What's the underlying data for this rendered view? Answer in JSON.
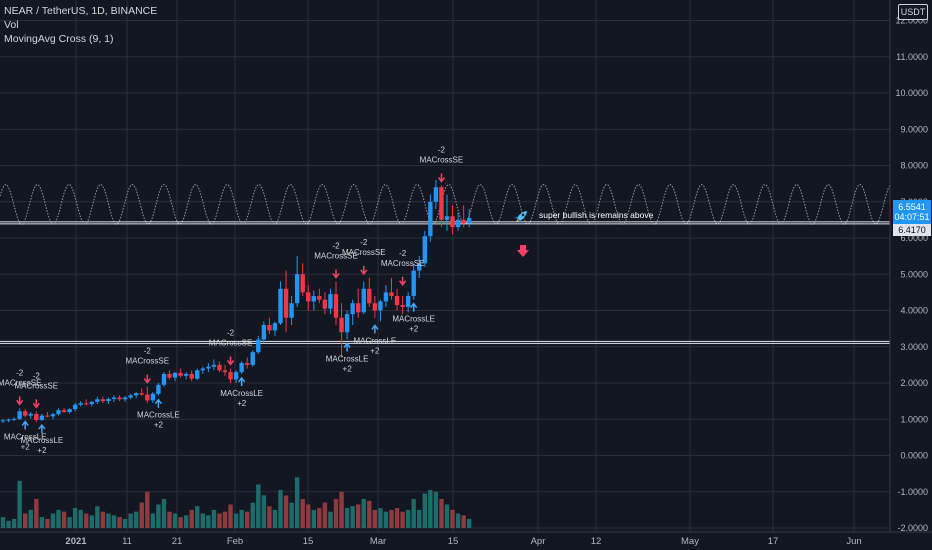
{
  "legend": {
    "symbol": "NEAR / TetherUS, 1D, BINANCE",
    "vol": "Vol",
    "indicator": "MovingAvg Cross (9, 1)"
  },
  "currency_button": "USDT",
  "price_tags": {
    "last_price": "6.5541",
    "countdown": "04:07:51",
    "line_price": "6.4170"
  },
  "annotation": {
    "text": "super bullish is remains above",
    "rocket_icon": "rocket-icon",
    "arrow_icon": "down-arrow-icon"
  },
  "colors": {
    "background": "#131722",
    "up": "#2196f3",
    "down": "#f23645",
    "vol_up": "#1e6b6b",
    "vol_down": "#8e3a3f",
    "grid": "#2a2e39",
    "line": "#e0e3eb",
    "signal_up": "#42a5f5",
    "signal_down": "#f7416a"
  },
  "chart_data": {
    "type": "candlestick",
    "y_axis": {
      "ticks": [
        "12.0000",
        "11.0000",
        "10.0000",
        "9.0000",
        "8.0000",
        "7.0000",
        "6.0000",
        "5.0000",
        "4.0000",
        "3.0000",
        "2.0000",
        "1.0000",
        "0.0000",
        "-1.0000",
        "-2.0000"
      ],
      "range": [
        -2,
        12.4
      ]
    },
    "x_axis": {
      "ticks": [
        "2021",
        "11",
        "21",
        "Feb",
        "15",
        "Mar",
        "15",
        "Apr",
        "12",
        "May",
        "17",
        "Jun"
      ]
    },
    "horizontal_lines": [
      6.417,
      3.12
    ],
    "candles": [
      [
        0.95,
        1.0,
        0.9,
        0.97
      ],
      [
        0.97,
        1.02,
        0.92,
        0.99
      ],
      [
        0.99,
        1.05,
        0.95,
        1.01
      ],
      [
        1.01,
        1.3,
        0.98,
        1.22
      ],
      [
        1.22,
        1.28,
        1.05,
        1.1
      ],
      [
        1.1,
        1.2,
        1.02,
        1.15
      ],
      [
        1.15,
        1.22,
        0.92,
        0.98
      ],
      [
        0.98,
        1.15,
        0.95,
        1.1
      ],
      [
        1.1,
        1.2,
        1.05,
        1.08
      ],
      [
        1.08,
        1.18,
        1.0,
        1.14
      ],
      [
        1.14,
        1.3,
        1.1,
        1.25
      ],
      [
        1.25,
        1.32,
        1.18,
        1.2
      ],
      [
        1.2,
        1.3,
        1.15,
        1.28
      ],
      [
        1.28,
        1.45,
        1.22,
        1.4
      ],
      [
        1.4,
        1.5,
        1.35,
        1.44
      ],
      [
        1.44,
        1.55,
        1.38,
        1.42
      ],
      [
        1.42,
        1.5,
        1.36,
        1.48
      ],
      [
        1.48,
        1.62,
        1.42,
        1.55
      ],
      [
        1.55,
        1.62,
        1.45,
        1.5
      ],
      [
        1.5,
        1.6,
        1.42,
        1.56
      ],
      [
        1.56,
        1.66,
        1.48,
        1.6
      ],
      [
        1.6,
        1.66,
        1.5,
        1.55
      ],
      [
        1.55,
        1.64,
        1.48,
        1.6
      ],
      [
        1.6,
        1.7,
        1.55,
        1.66
      ],
      [
        1.66,
        1.75,
        1.58,
        1.72
      ],
      [
        1.72,
        1.85,
        1.65,
        1.68
      ],
      [
        1.68,
        1.9,
        1.45,
        1.52
      ],
      [
        1.52,
        1.75,
        1.45,
        1.7
      ],
      [
        1.7,
        2.0,
        1.65,
        1.95
      ],
      [
        1.95,
        2.3,
        1.9,
        2.25
      ],
      [
        2.25,
        2.35,
        2.1,
        2.15
      ],
      [
        2.15,
        2.3,
        2.05,
        2.28
      ],
      [
        2.28,
        2.4,
        2.15,
        2.2
      ],
      [
        2.2,
        2.3,
        2.1,
        2.25
      ],
      [
        2.25,
        2.35,
        2.05,
        2.12
      ],
      [
        2.12,
        2.4,
        2.08,
        2.35
      ],
      [
        2.35,
        2.45,
        2.25,
        2.4
      ],
      [
        2.4,
        2.55,
        2.3,
        2.45
      ],
      [
        2.45,
        2.65,
        2.35,
        2.5
      ],
      [
        2.5,
        2.6,
        2.3,
        2.35
      ],
      [
        2.35,
        2.5,
        2.2,
        2.3
      ],
      [
        2.3,
        2.4,
        2.0,
        2.1
      ],
      [
        2.1,
        2.35,
        2.0,
        2.3
      ],
      [
        2.3,
        2.6,
        2.25,
        2.55
      ],
      [
        2.55,
        2.7,
        2.4,
        2.5
      ],
      [
        2.5,
        2.9,
        2.45,
        2.85
      ],
      [
        2.85,
        3.3,
        2.8,
        3.2
      ],
      [
        3.2,
        3.7,
        3.1,
        3.6
      ],
      [
        3.6,
        3.8,
        3.35,
        3.45
      ],
      [
        3.45,
        3.7,
        3.3,
        3.65
      ],
      [
        3.65,
        4.8,
        3.6,
        4.6
      ],
      [
        4.6,
        5.1,
        3.4,
        3.8
      ],
      [
        3.8,
        4.4,
        3.6,
        4.2
      ],
      [
        4.2,
        5.5,
        4.1,
        5.0
      ],
      [
        5.0,
        5.3,
        4.4,
        4.5
      ],
      [
        4.5,
        4.7,
        4.0,
        4.25
      ],
      [
        4.25,
        4.55,
        4.0,
        4.4
      ],
      [
        4.4,
        4.6,
        4.2,
        4.3
      ],
      [
        4.3,
        4.5,
        3.9,
        4.05
      ],
      [
        4.05,
        4.6,
        3.9,
        4.45
      ],
      [
        4.45,
        4.8,
        3.6,
        3.8
      ],
      [
        3.8,
        4.2,
        2.7,
        3.4
      ],
      [
        3.4,
        4.0,
        3.2,
        3.9
      ],
      [
        3.9,
        4.3,
        3.6,
        4.2
      ],
      [
        4.2,
        4.6,
        3.8,
        3.95
      ],
      [
        3.95,
        4.8,
        3.9,
        4.6
      ],
      [
        4.6,
        4.9,
        4.1,
        4.2
      ],
      [
        4.2,
        4.4,
        3.8,
        4.0
      ],
      [
        4.0,
        4.3,
        3.7,
        4.25
      ],
      [
        4.25,
        4.7,
        4.1,
        4.5
      ],
      [
        4.5,
        4.9,
        4.3,
        4.4
      ],
      [
        4.4,
        4.6,
        4.0,
        4.15
      ],
      [
        4.15,
        4.4,
        3.9,
        4.1
      ],
      [
        4.1,
        4.5,
        3.95,
        4.4
      ],
      [
        4.4,
        5.3,
        4.3,
        5.1
      ],
      [
        5.1,
        5.5,
        4.9,
        5.3
      ],
      [
        5.3,
        6.2,
        5.2,
        6.05
      ],
      [
        6.05,
        7.2,
        5.9,
        7.0
      ],
      [
        7.0,
        7.6,
        6.8,
        7.4
      ],
      [
        7.4,
        7.45,
        6.3,
        6.5
      ],
      [
        6.5,
        7.2,
        6.2,
        6.6
      ],
      [
        6.6,
        6.9,
        6.1,
        6.3
      ],
      [
        6.3,
        6.7,
        6.2,
        6.5
      ],
      [
        6.5,
        6.9,
        6.3,
        6.4
      ],
      [
        6.4,
        6.8,
        6.3,
        6.55
      ]
    ],
    "volumes": [
      -1.7,
      -1.8,
      -1.75,
      -0.7,
      -1.6,
      -1.5,
      -1.2,
      -1.7,
      -1.75,
      -1.6,
      -1.5,
      -1.55,
      -1.7,
      -1.45,
      -1.5,
      -1.6,
      -1.65,
      -1.4,
      -1.55,
      -1.6,
      -1.65,
      -1.7,
      -1.75,
      -1.6,
      -1.55,
      -1.3,
      -1.0,
      -1.6,
      -1.35,
      -1.2,
      -1.55,
      -1.6,
      -1.7,
      -1.65,
      -1.5,
      -1.4,
      -1.6,
      -1.65,
      -1.5,
      -1.6,
      -1.55,
      -1.35,
      -1.6,
      -1.5,
      -1.55,
      -1.3,
      -0.8,
      -1.1,
      -1.4,
      -1.5,
      -0.95,
      -1.1,
      -1.3,
      -0.6,
      -1.2,
      -1.35,
      -1.5,
      -1.45,
      -1.3,
      -1.55,
      -1.2,
      -1.0,
      -1.45,
      -1.4,
      -1.35,
      -1.2,
      -1.25,
      -1.5,
      -1.45,
      -1.55,
      -1.5,
      -1.45,
      -1.55,
      -1.5,
      -1.2,
      -1.5,
      -1.05,
      -0.95,
      -1.0,
      -1.2,
      -1.35,
      -1.5,
      -1.6,
      -1.65,
      -1.75
    ],
    "signals": [
      {
        "type": "SE",
        "label": "MACrossSE",
        "pos": "-2",
        "i": 3,
        "price": 1.3
      },
      {
        "type": "SE",
        "label": "MACrossSE",
        "pos": "-2",
        "i": 6,
        "price": 1.22
      },
      {
        "type": "LE",
        "label": "MACrossLE",
        "pos": "+2",
        "i": 4,
        "price": 1.05
      },
      {
        "type": "LE",
        "label": "MACrossLE",
        "pos": "+2",
        "i": 7,
        "price": 0.95
      },
      {
        "type": "SE",
        "label": "MACrossSE",
        "pos": "-2",
        "i": 26,
        "price": 1.9
      },
      {
        "type": "LE",
        "label": "MACrossLE",
        "pos": "+2",
        "i": 28,
        "price": 1.65
      },
      {
        "type": "SE",
        "label": "MACrossSE",
        "pos": "-2",
        "i": 41,
        "price": 2.4
      },
      {
        "type": "LE",
        "label": "MACrossLE",
        "pos": "+2",
        "i": 43,
        "price": 2.25
      },
      {
        "type": "SE",
        "label": "MACrossSE",
        "pos": "-2",
        "i": 60,
        "price": 4.8
      },
      {
        "type": "LE",
        "label": "MACrossLE",
        "pos": "+2",
        "i": 62,
        "price": 3.2
      },
      {
        "type": "SE",
        "label": "MACrossSE",
        "pos": "-2",
        "i": 65,
        "price": 4.9
      },
      {
        "type": "LE",
        "label": "MACrossLE",
        "pos": "+2",
        "i": 67,
        "price": 3.7
      },
      {
        "type": "SE",
        "label": "MACrossSE",
        "pos": "-2",
        "i": 72,
        "price": 4.6
      },
      {
        "type": "LE",
        "label": "MACrossLE",
        "pos": "+2",
        "i": 74,
        "price": 4.3
      },
      {
        "type": "SE",
        "label": "MACrossSE",
        "pos": "-2",
        "i": 79,
        "price": 7.45
      }
    ],
    "wave": {
      "center": 6.93,
      "amplitude": 0.55,
      "period_bars": 5.7
    }
  }
}
